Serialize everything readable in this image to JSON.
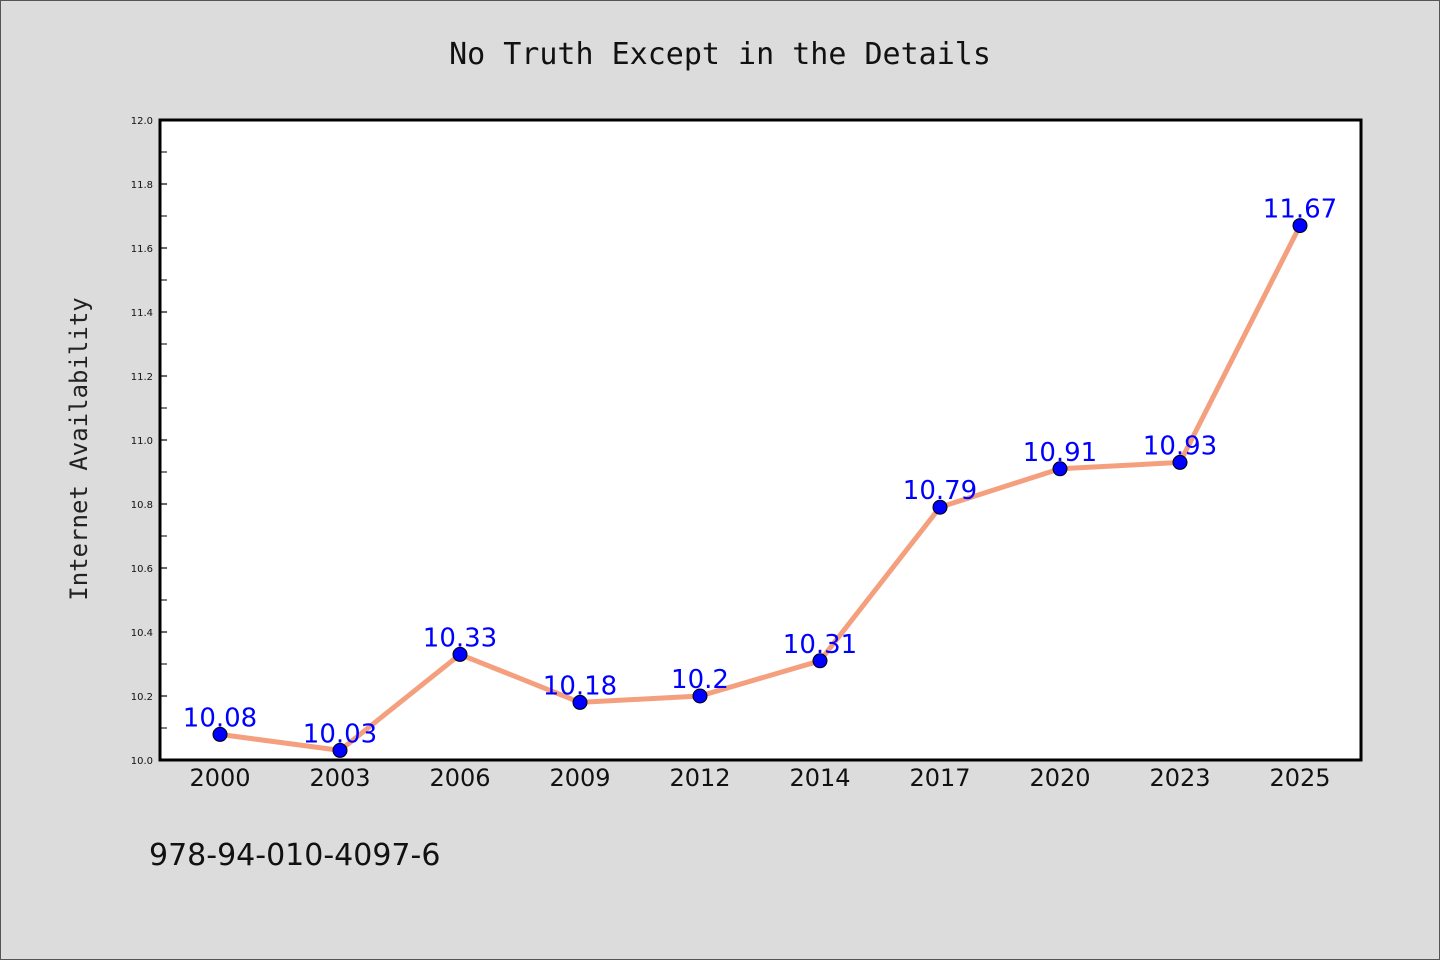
{
  "chart_data": {
    "type": "line",
    "title": "No Truth Except in the Details",
    "xlabel": "",
    "ylabel": "Internet Availability",
    "categories": [
      "2000",
      "2003",
      "2006",
      "2009",
      "2012",
      "2014",
      "2017",
      "2020",
      "2023",
      "2025"
    ],
    "series": [
      {
        "values": [
          10.08,
          10.03,
          10.33,
          10.18,
          10.2,
          10.31,
          10.79,
          10.91,
          10.93,
          11.67
        ],
        "labels": [
          "10.08",
          "10.03",
          "10.33",
          "10.18",
          "10.2",
          "10.31",
          "10.79",
          "10.91",
          "10.93",
          "11.67"
        ],
        "line_color": "#f4a07f",
        "marker_color": "#0000ff",
        "label_color": "#0000ff"
      }
    ],
    "ylim": [
      10.0,
      12.0
    ],
    "yticks": [
      "10.0",
      "10.2",
      "10.4",
      "10.6",
      "10.8",
      "11.0",
      "11.2",
      "11.4",
      "11.6",
      "11.8",
      "12.0"
    ],
    "grid": false,
    "legend": "none"
  },
  "footer_text": "978-94-010-4097-6",
  "colors": {
    "background": "#dcdcdc",
    "plot_background": "#ffffff",
    "axes": "#000000"
  }
}
